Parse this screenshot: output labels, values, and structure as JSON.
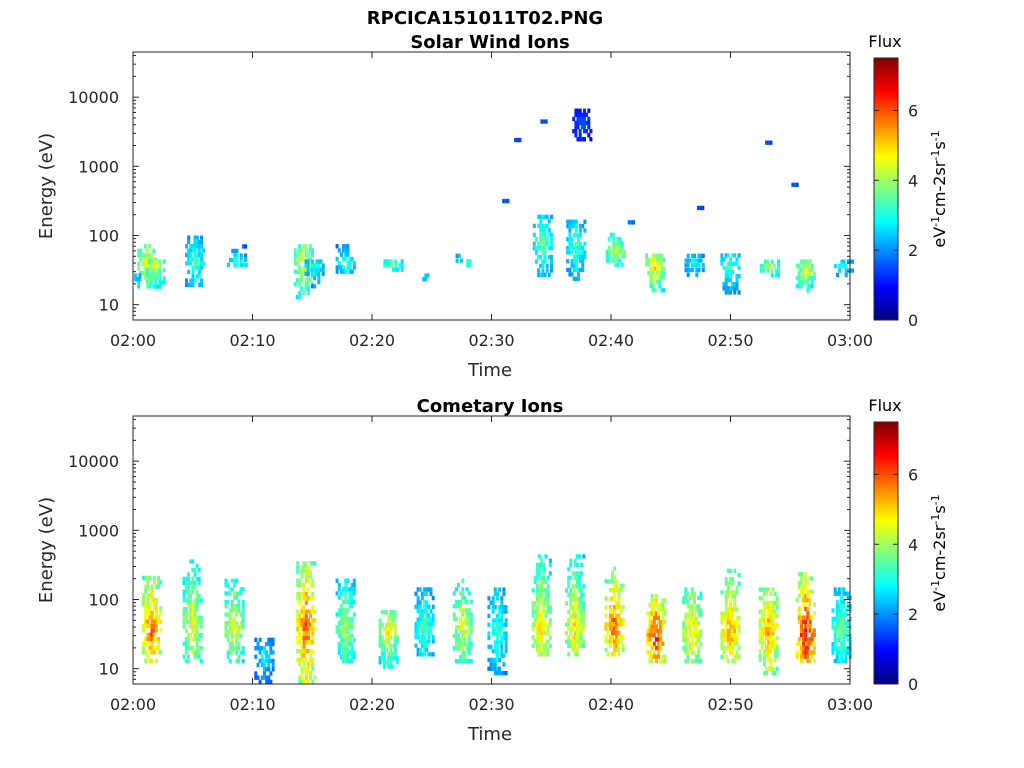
{
  "figure": {
    "filename": "RPCICA151011T02.PNG"
  },
  "chart_data": [
    {
      "type": "heatmap",
      "title": "Solar Wind Ions",
      "xlabel": "Time",
      "ylabel": "Energy (eV)",
      "x_ticks": [
        "02:00",
        "02:10",
        "02:20",
        "02:30",
        "02:40",
        "02:50",
        "03:00"
      ],
      "x_range_minutes": [
        0,
        60
      ],
      "y_scale": "log",
      "y_range": [
        6,
        45000
      ],
      "y_ticks": [
        10,
        100,
        1000,
        10000
      ],
      "y_tick_labels": [
        "10",
        "100",
        "1000",
        "10000"
      ],
      "colorbar": {
        "title": "Flux",
        "label": "eV-1cm-2sr-1s-1",
        "range": [
          0,
          7.5
        ],
        "ticks": [
          0,
          2,
          4,
          6
        ],
        "colormap": "jet"
      },
      "clusters": [
        {
          "t": 1.2,
          "emin": 17,
          "emax": 75,
          "peak_energy": 38,
          "flux": 4.8
        },
        {
          "t": 1.9,
          "emin": 17,
          "emax": 45,
          "peak_energy": 35,
          "flux": 4.6
        },
        {
          "t": 0.4,
          "emin": 22,
          "emax": 28,
          "peak_energy": 25,
          "flux": 2.8
        },
        {
          "t": 5.2,
          "emin": 18,
          "emax": 100,
          "peak_energy": 40,
          "flux": 3.4
        },
        {
          "t": 8.7,
          "emin": 35,
          "emax": 75,
          "peak_energy": 40,
          "flux": 3.2
        },
        {
          "t": 9.3,
          "emin": 35,
          "emax": 45,
          "peak_energy": 40,
          "flux": 3.6
        },
        {
          "t": 14.3,
          "emin": 12,
          "emax": 75,
          "peak_energy": 38,
          "flux": 4.7
        },
        {
          "t": 15.2,
          "emin": 15,
          "emax": 45,
          "peak_energy": 35,
          "flux": 3.2
        },
        {
          "t": 17.8,
          "emin": 28,
          "emax": 75,
          "peak_energy": 40,
          "flux": 3.3
        },
        {
          "t": 21.8,
          "emin": 30,
          "emax": 45,
          "peak_energy": 38,
          "flux": 4.0
        },
        {
          "t": 24.5,
          "emin": 22,
          "emax": 28,
          "peak_energy": 25,
          "flux": 2.9
        },
        {
          "t": 27.3,
          "emin": 40,
          "emax": 55,
          "peak_energy": 45,
          "flux": 3.0
        },
        {
          "t": 28.2,
          "emin": 35,
          "emax": 45,
          "peak_energy": 40,
          "flux": 3.6
        },
        {
          "t": 31.2,
          "emin": 300,
          "emax": 330,
          "peak_energy": 315,
          "flux": 1.6
        },
        {
          "t": 32.2,
          "emin": 2300,
          "emax": 2500,
          "peak_energy": 2400,
          "flux": 1.6
        },
        {
          "t": 34.3,
          "emin": 25,
          "emax": 200,
          "peak_energy": 80,
          "flux": 3.6
        },
        {
          "t": 34.4,
          "emin": 4300,
          "emax": 4600,
          "peak_energy": 4400,
          "flux": 1.6
        },
        {
          "t": 37.1,
          "emin": 22,
          "emax": 170,
          "peak_energy": 70,
          "flux": 3.4
        },
        {
          "t": 37.6,
          "emin": 2300,
          "emax": 6800,
          "peak_energy": 4000,
          "flux": 1.6
        },
        {
          "t": 40.4,
          "emin": 35,
          "emax": 110,
          "peak_energy": 60,
          "flux": 4.4
        },
        {
          "t": 41.7,
          "emin": 150,
          "emax": 160,
          "peak_energy": 155,
          "flux": 2.0
        },
        {
          "t": 43.7,
          "emin": 15,
          "emax": 55,
          "peak_energy": 35,
          "flux": 5.0
        },
        {
          "t": 47.0,
          "emin": 25,
          "emax": 55,
          "peak_energy": 40,
          "flux": 3.0
        },
        {
          "t": 47.5,
          "emin": 240,
          "emax": 260,
          "peak_energy": 250,
          "flux": 1.6
        },
        {
          "t": 50.0,
          "emin": 14,
          "emax": 55,
          "peak_energy": 35,
          "flux": 3.4
        },
        {
          "t": 53.3,
          "emin": 25,
          "emax": 45,
          "peak_energy": 35,
          "flux": 4.2
        },
        {
          "t": 53.2,
          "emin": 2100,
          "emax": 2300,
          "peak_energy": 2200,
          "flux": 1.6
        },
        {
          "t": 55.4,
          "emin": 520,
          "emax": 560,
          "peak_energy": 540,
          "flux": 1.6
        },
        {
          "t": 56.3,
          "emin": 15,
          "emax": 45,
          "peak_energy": 30,
          "flux": 4.6
        },
        {
          "t": 59.5,
          "emin": 25,
          "emax": 45,
          "peak_energy": 35,
          "flux": 3.2
        }
      ]
    },
    {
      "type": "heatmap",
      "title": "Cometary Ions",
      "xlabel": "Time",
      "ylabel": "Energy (eV)",
      "x_ticks": [
        "02:00",
        "02:10",
        "02:20",
        "02:30",
        "02:40",
        "02:50",
        "03:00"
      ],
      "x_range_minutes": [
        0,
        60
      ],
      "y_scale": "log",
      "y_range": [
        6,
        45000
      ],
      "y_ticks": [
        10,
        100,
        1000,
        10000
      ],
      "y_tick_labels": [
        "10",
        "100",
        "1000",
        "10000"
      ],
      "colorbar": {
        "title": "Flux",
        "label": "eV-1cm-2sr-1s-1",
        "range": [
          0,
          7.5
        ],
        "ticks": [
          0,
          2,
          4,
          6
        ],
        "colormap": "jet"
      },
      "clusters": [
        {
          "t": 1.6,
          "emin": 12,
          "emax": 220,
          "peak_energy": 38,
          "flux": 6.0
        },
        {
          "t": 5.0,
          "emin": 12,
          "emax": 380,
          "peak_energy": 40,
          "flux": 4.7
        },
        {
          "t": 8.5,
          "emin": 12,
          "emax": 200,
          "peak_energy": 40,
          "flux": 4.6
        },
        {
          "t": 11.0,
          "emin": 6,
          "emax": 28,
          "peak_energy": 15,
          "flux": 2.8
        },
        {
          "t": 14.5,
          "emin": 6,
          "emax": 360,
          "peak_energy": 38,
          "flux": 6.0
        },
        {
          "t": 17.8,
          "emin": 12,
          "emax": 200,
          "peak_energy": 40,
          "flux": 4.2
        },
        {
          "t": 21.4,
          "emin": 10,
          "emax": 70,
          "peak_energy": 35,
          "flux": 4.8
        },
        {
          "t": 24.4,
          "emin": 15,
          "emax": 150,
          "peak_energy": 40,
          "flux": 3.5
        },
        {
          "t": 27.6,
          "emin": 12,
          "emax": 200,
          "peak_energy": 40,
          "flux": 4.6
        },
        {
          "t": 30.5,
          "emin": 8,
          "emax": 150,
          "peak_energy": 35,
          "flux": 3.2
        },
        {
          "t": 34.2,
          "emin": 15,
          "emax": 450,
          "peak_energy": 40,
          "flux": 5.0
        },
        {
          "t": 37.0,
          "emin": 15,
          "emax": 450,
          "peak_energy": 40,
          "flux": 5.0
        },
        {
          "t": 40.3,
          "emin": 15,
          "emax": 300,
          "peak_energy": 40,
          "flux": 6.0
        },
        {
          "t": 43.8,
          "emin": 12,
          "emax": 120,
          "peak_energy": 30,
          "flux": 6.5
        },
        {
          "t": 46.8,
          "emin": 12,
          "emax": 150,
          "peak_energy": 35,
          "flux": 5.2
        },
        {
          "t": 50.0,
          "emin": 12,
          "emax": 280,
          "peak_energy": 35,
          "flux": 5.6
        },
        {
          "t": 53.2,
          "emin": 8,
          "emax": 150,
          "peak_energy": 35,
          "flux": 5.6
        },
        {
          "t": 56.3,
          "emin": 12,
          "emax": 250,
          "peak_energy": 30,
          "flux": 6.8
        },
        {
          "t": 59.3,
          "emin": 12,
          "emax": 150,
          "peak_energy": 35,
          "flux": 3.8
        }
      ]
    }
  ]
}
